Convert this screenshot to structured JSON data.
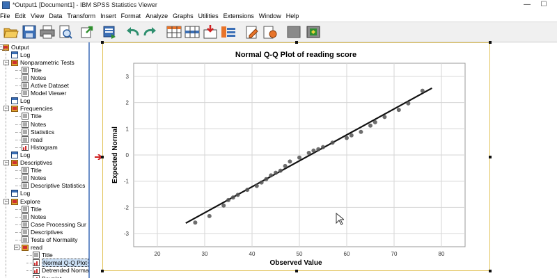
{
  "window": {
    "title": "*Output1 [Document1] - IBM SPSS Statistics Viewer",
    "minimize": "—",
    "maximize": "☐"
  },
  "menu": [
    "File",
    "Edit",
    "View",
    "Data",
    "Transform",
    "Insert",
    "Format",
    "Analyze",
    "Graphs",
    "Utilities",
    "Extensions",
    "Window",
    "Help"
  ],
  "toolbar": {
    "buttons": [
      "open-icon",
      "save-icon",
      "print-icon",
      "print-preview-icon",
      "export-icon",
      "recall-dialog-icon",
      "undo-icon",
      "redo-icon",
      "goto-data-icon",
      "goto-case-icon",
      "goto-variable-icon",
      "variables-icon",
      "insert-output-icon",
      "show-output-icon",
      "hide-icon",
      "designate-window-icon"
    ]
  },
  "outline": {
    "items": [
      {
        "label": "Output",
        "level": 0,
        "icon": "output-folder-icon"
      },
      {
        "label": "Log",
        "level": 1,
        "icon": "log-icon"
      },
      {
        "label": "Nonparametric Tests",
        "level": 1,
        "icon": "folder-icon"
      },
      {
        "label": "Title",
        "level": 2,
        "icon": "title-icon"
      },
      {
        "label": "Notes",
        "level": 2,
        "icon": "notes-icon"
      },
      {
        "label": "Active Dataset",
        "level": 2,
        "icon": "dataset-icon"
      },
      {
        "label": "Model Viewer",
        "level": 2,
        "icon": "model-icon"
      },
      {
        "label": "Log",
        "level": 1,
        "icon": "log-icon"
      },
      {
        "label": "Frequencies",
        "level": 1,
        "icon": "folder-icon"
      },
      {
        "label": "Title",
        "level": 2,
        "icon": "title-icon"
      },
      {
        "label": "Notes",
        "level": 2,
        "icon": "notes-icon"
      },
      {
        "label": "Statistics",
        "level": 2,
        "icon": "table-icon"
      },
      {
        "label": "read",
        "level": 2,
        "icon": "table-icon"
      },
      {
        "label": "Histogram",
        "level": 2,
        "icon": "chart-icon"
      },
      {
        "label": "Log",
        "level": 1,
        "icon": "log-icon"
      },
      {
        "label": "Descriptives",
        "level": 1,
        "icon": "folder-icon"
      },
      {
        "label": "Title",
        "level": 2,
        "icon": "title-icon"
      },
      {
        "label": "Notes",
        "level": 2,
        "icon": "notes-icon"
      },
      {
        "label": "Descriptive Statistics",
        "level": 2,
        "icon": "table-icon"
      },
      {
        "label": "Log",
        "level": 1,
        "icon": "log-icon"
      },
      {
        "label": "Explore",
        "level": 1,
        "icon": "folder-icon"
      },
      {
        "label": "Title",
        "level": 2,
        "icon": "title-icon"
      },
      {
        "label": "Notes",
        "level": 2,
        "icon": "notes-icon"
      },
      {
        "label": "Case Processing Sur",
        "level": 2,
        "icon": "table-icon"
      },
      {
        "label": "Descriptives",
        "level": 2,
        "icon": "table-icon"
      },
      {
        "label": "Tests of Normality",
        "level": 2,
        "icon": "table-icon"
      },
      {
        "label": "read",
        "level": 2,
        "icon": "folder-icon"
      },
      {
        "label": "Title",
        "level": 3,
        "icon": "title-icon"
      },
      {
        "label": "Normal Q-Q Plot",
        "level": 3,
        "icon": "chart-icon",
        "selected": true
      },
      {
        "label": "Detrended Norma",
        "level": 3,
        "icon": "chart-icon"
      },
      {
        "label": "Boxplot",
        "level": 3,
        "icon": "chart-icon"
      }
    ]
  },
  "chart_data": {
    "type": "scatter",
    "title": "Normal Q-Q Plot of reading score",
    "xlabel": "Observed Value",
    "ylabel": "Expected Normal",
    "xlim": [
      15,
      85
    ],
    "ylim": [
      -3.5,
      3.5
    ],
    "xticks": [
      20,
      30,
      40,
      50,
      60,
      70,
      80
    ],
    "yticks": [
      3,
      2,
      1,
      0,
      -1,
      -2,
      -3
    ],
    "grid": true,
    "points": [
      {
        "x": 28,
        "y": -2.58
      },
      {
        "x": 31,
        "y": -2.33
      },
      {
        "x": 34,
        "y": -1.93
      },
      {
        "x": 35,
        "y": -1.72
      },
      {
        "x": 36,
        "y": -1.62
      },
      {
        "x": 37,
        "y": -1.52
      },
      {
        "x": 39,
        "y": -1.33
      },
      {
        "x": 41,
        "y": -1.18
      },
      {
        "x": 42,
        "y": -1.05
      },
      {
        "x": 43,
        "y": -0.92
      },
      {
        "x": 44,
        "y": -0.78
      },
      {
        "x": 45,
        "y": -0.68
      },
      {
        "x": 46,
        "y": -0.6
      },
      {
        "x": 47,
        "y": -0.42
      },
      {
        "x": 48,
        "y": -0.25
      },
      {
        "x": 50,
        "y": -0.1
      },
      {
        "x": 52,
        "y": 0.08
      },
      {
        "x": 53,
        "y": 0.17
      },
      {
        "x": 54,
        "y": 0.22
      },
      {
        "x": 55,
        "y": 0.3
      },
      {
        "x": 57,
        "y": 0.47
      },
      {
        "x": 60,
        "y": 0.65
      },
      {
        "x": 61,
        "y": 0.75
      },
      {
        "x": 63,
        "y": 0.88
      },
      {
        "x": 65,
        "y": 1.12
      },
      {
        "x": 66,
        "y": 1.25
      },
      {
        "x": 68,
        "y": 1.45
      },
      {
        "x": 71,
        "y": 1.72
      },
      {
        "x": 73,
        "y": 1.97
      },
      {
        "x": 76,
        "y": 2.45
      }
    ],
    "line": {
      "x": [
        26,
        78
      ],
      "y": [
        -2.6,
        2.55
      ]
    }
  }
}
